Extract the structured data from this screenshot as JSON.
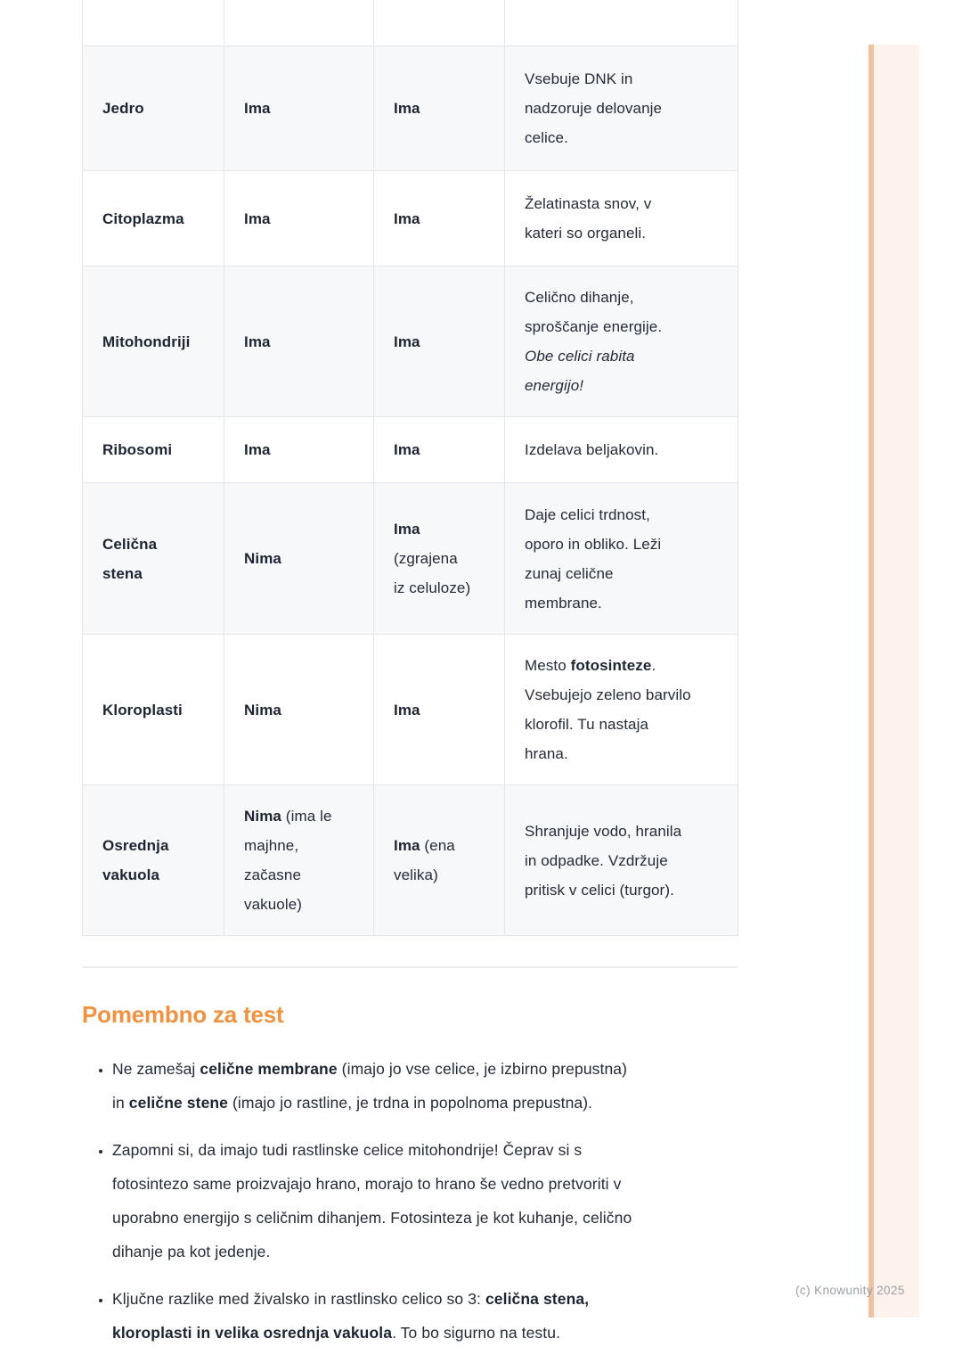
{
  "colors": {
    "heading_orange": "#f0923f",
    "row_shade": "#f7f8fa",
    "table_border": "#e2e6ea",
    "body_text": "#242b38",
    "muted_text": "#9aa0a6",
    "accent_bar_fill": "#fdf3ec",
    "accent_bar_edge": "#f0c3a0",
    "divider": "#e9edf0"
  },
  "table": {
    "rows": [
      {
        "partial": true,
        "shaded": false,
        "name": [],
        "animal": [],
        "plant": [],
        "desc": []
      },
      {
        "shaded": true,
        "name": [
          {
            "t": "Jedro",
            "b": true
          }
        ],
        "animal": [
          {
            "t": "Ima",
            "b": true
          }
        ],
        "plant": [
          {
            "t": "Ima",
            "b": true
          }
        ],
        "desc": [
          {
            "t": "Vsebuje DNK in\nnadzoruje delovanje\ncelice."
          }
        ]
      },
      {
        "shaded": false,
        "name": [
          {
            "t": "Citoplazma",
            "b": true
          }
        ],
        "animal": [
          {
            "t": "Ima",
            "b": true
          }
        ],
        "plant": [
          {
            "t": "Ima",
            "b": true
          }
        ],
        "desc": [
          {
            "t": "Želatinasta snov, v\nkateri so organeli."
          }
        ]
      },
      {
        "shaded": true,
        "name": [
          {
            "t": "Mitohondriji",
            "b": true
          }
        ],
        "animal": [
          {
            "t": "Ima",
            "b": true
          }
        ],
        "plant": [
          {
            "t": "Ima",
            "b": true
          }
        ],
        "desc": [
          {
            "t": "Celično dihanje,\nsproščanje energije.\n"
          },
          {
            "t": "Obe celici rabita\nenergijo!",
            "i": true
          }
        ]
      },
      {
        "shaded": false,
        "name": [
          {
            "t": "Ribosomi",
            "b": true
          }
        ],
        "animal": [
          {
            "t": "Ima",
            "b": true
          }
        ],
        "plant": [
          {
            "t": "Ima",
            "b": true
          }
        ],
        "desc": [
          {
            "t": "Izdelava beljakovin."
          }
        ]
      },
      {
        "shaded": true,
        "name": [
          {
            "t": "Celična\nstena",
            "b": true
          }
        ],
        "animal": [
          {
            "t": "Nima",
            "b": true
          }
        ],
        "plant": [
          {
            "t": "Ima",
            "b": true
          },
          {
            "t": "\n(zgrajena\niz celuloze)"
          }
        ],
        "desc": [
          {
            "t": "Daje celici trdnost,\noporo in obliko. Leži\nzunaj celične\nmembrane."
          }
        ]
      },
      {
        "shaded": false,
        "name": [
          {
            "t": "Kloroplasti",
            "b": true
          }
        ],
        "animal": [
          {
            "t": "Nima",
            "b": true
          }
        ],
        "plant": [
          {
            "t": "Ima",
            "b": true
          }
        ],
        "desc": [
          {
            "t": "Mesto "
          },
          {
            "t": "fotosinteze",
            "b": true
          },
          {
            "t": ".\nVsebujejo zeleno barvilo\nklorofil. Tu nastaja\nhrana."
          }
        ]
      },
      {
        "shaded": true,
        "name": [
          {
            "t": "Osrednja\nvakuola",
            "b": true
          }
        ],
        "animal": [
          {
            "t": "Nima",
            "b": true
          },
          {
            "t": " (ima le\nmajhne,\nzačasne\nvakuole)"
          }
        ],
        "plant": [
          {
            "t": "Ima",
            "b": true
          },
          {
            "t": " (ena\nvelika)"
          }
        ],
        "desc": [
          {
            "t": "Shranjuje vodo, hranila\nin odpadke. Vzdržuje\npritisk v celici (turgor)."
          }
        ]
      }
    ]
  },
  "section": {
    "heading": "Pomembno za test",
    "bullets": [
      {
        "segments": [
          {
            "t": "Ne zamešaj "
          },
          {
            "t": "celične membrane",
            "b": true
          },
          {
            "t": " (imajo jo vse celice, je izbirno prepustna)\nin "
          },
          {
            "t": "celične stene",
            "b": true
          },
          {
            "t": " (imajo jo rastline, je trdna in popolnoma prepustna)."
          }
        ]
      },
      {
        "segments": [
          {
            "t": "Zapomni si, da imajo tudi rastlinske celice mitohondrije! Čeprav si s\nfotosintezo same proizvajajo hrano, morajo to hrano še vedno pretvoriti v\nuporabno energijo s celičnim dihanjem. Fotosinteza je kot kuhanje, celično\ndihanje pa kot jedenje."
          }
        ]
      },
      {
        "segments": [
          {
            "t": "Ključne razlike med živalsko in rastlinsko celico so 3: "
          },
          {
            "t": "celična stena,\nkloroplasti in velika osrednja vakuola",
            "b": true
          },
          {
            "t": ". To bo sigurno na testu."
          }
        ]
      }
    ]
  },
  "footer": {
    "copyright": "(c) Knowunity 2025"
  }
}
